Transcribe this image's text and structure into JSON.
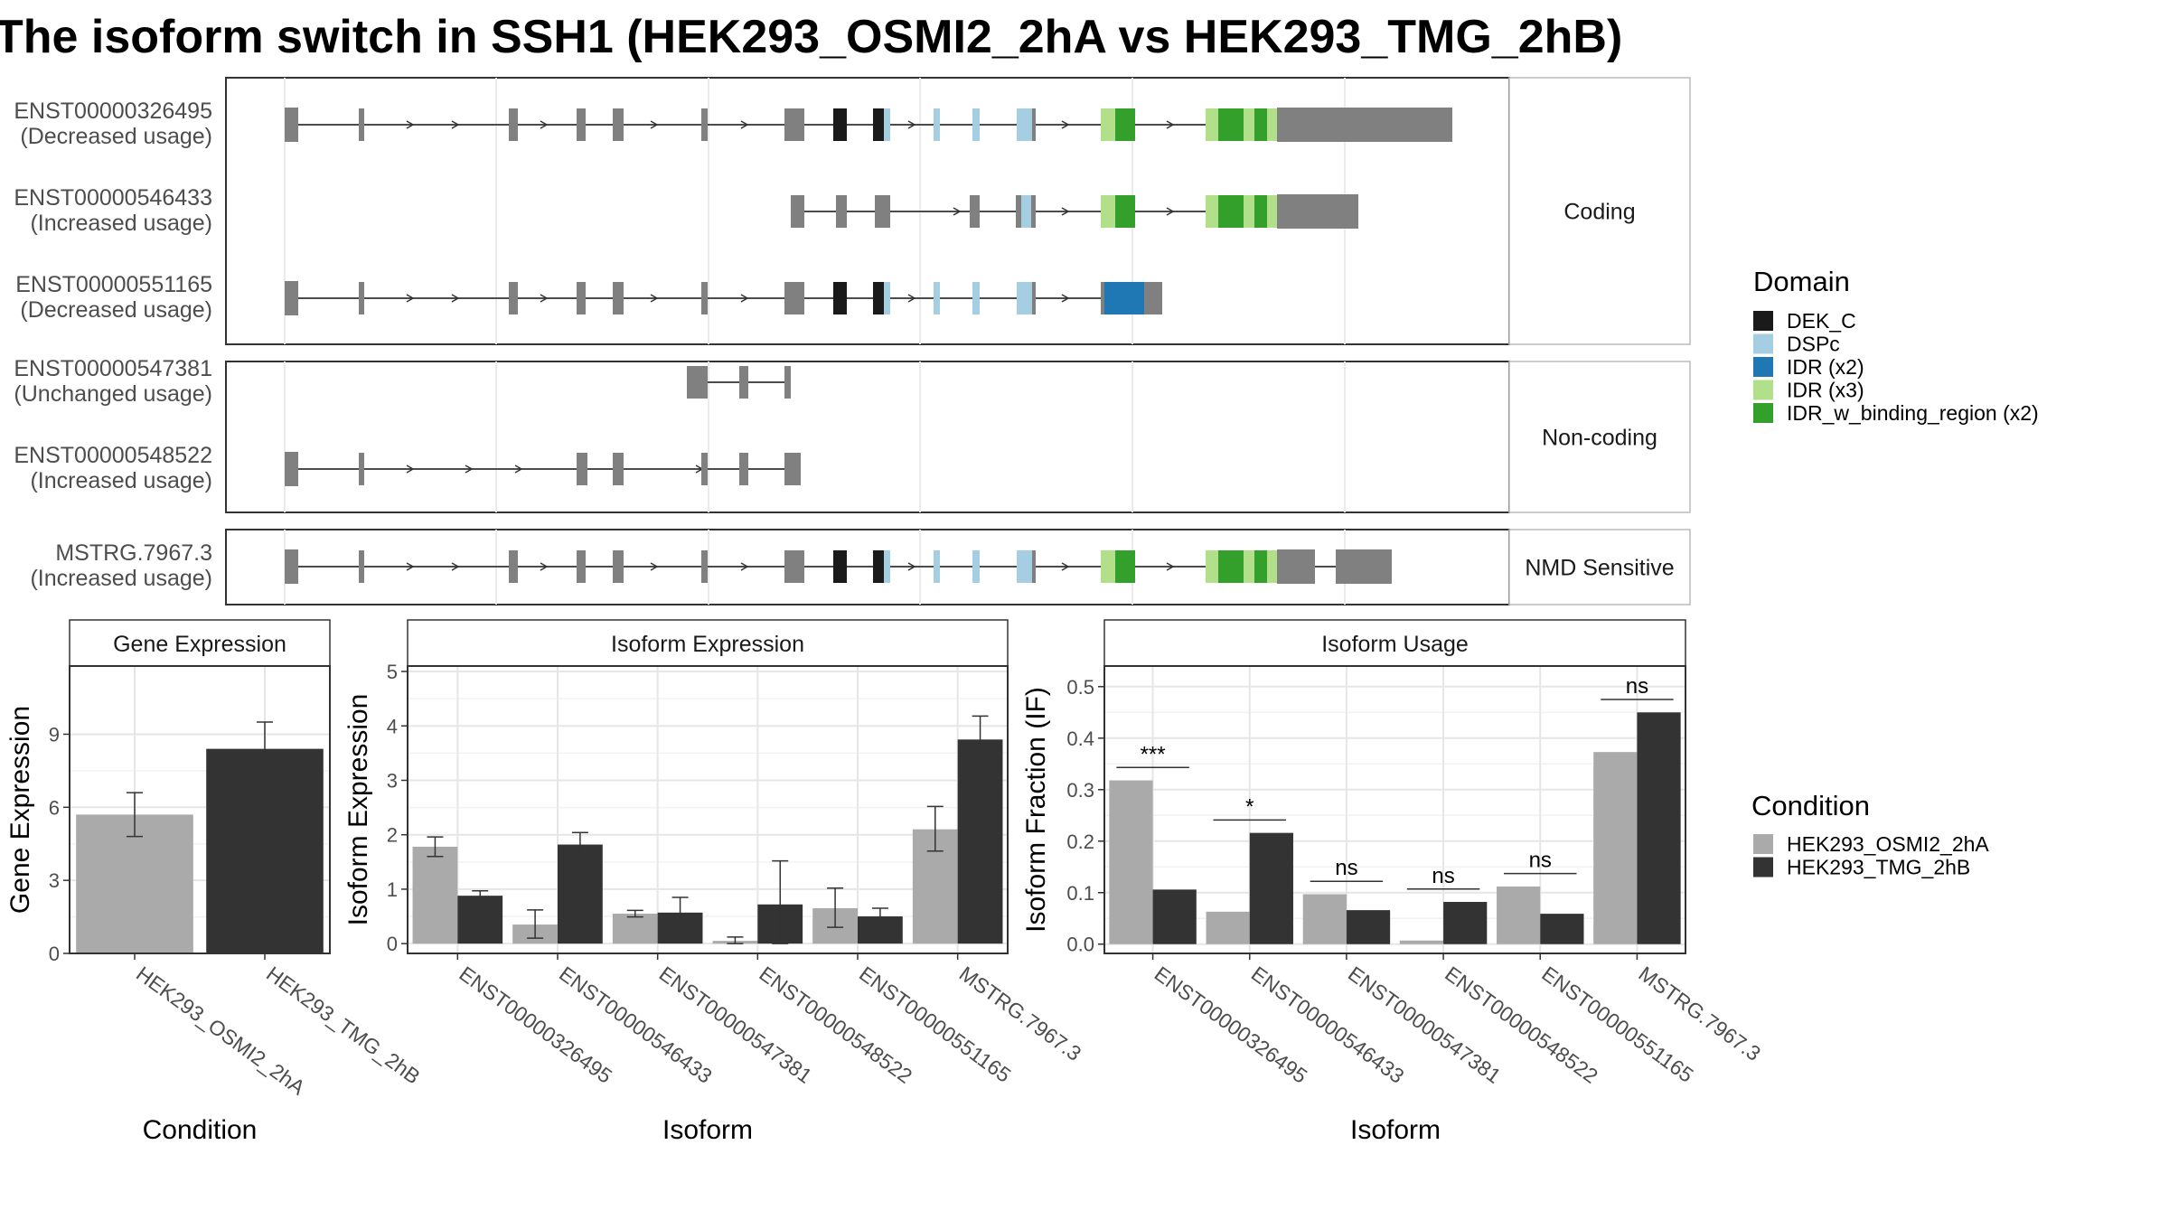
{
  "title": "The isoform switch in SSH1 (HEK293_OSMI2_2hA vs HEK293_TMG_2hB)",
  "colors": {
    "exon": "#808080",
    "DEK_C": "#1a1a1a",
    "DSPc": "#a6cee3",
    "IDR (x2)": "#1f78b4",
    "IDR (x3)": "#b2df8a",
    "IDR_w_binding_region (x2)": "#33a02c",
    "cond1": "#aaaaaa",
    "cond2": "#333333"
  },
  "structure": {
    "sections": [
      {
        "label": "Coding",
        "transcripts": [
          {
            "id": "ENST00000326495",
            "usage": "(Decreased usage)"
          },
          {
            "id": "ENST00000546433",
            "usage": "(Increased usage)"
          },
          {
            "id": "ENST00000551165",
            "usage": "(Decreased usage)"
          }
        ]
      },
      {
        "label": "Non-coding",
        "transcripts": [
          {
            "id": "ENST00000547381",
            "usage": "(Unchanged usage)"
          },
          {
            "id": "ENST00000548522",
            "usage": "(Increased usage)"
          }
        ]
      },
      {
        "label": "NMD Sensitive",
        "transcripts": [
          {
            "id": "MSTRG.7967.3",
            "usage": "(Increased usage)"
          }
        ]
      }
    ]
  },
  "legend_domain": {
    "title": "Domain",
    "items": [
      "DEK_C",
      "DSPc",
      "IDR (x2)",
      "IDR (x3)",
      "IDR_w_binding_region (x2)"
    ]
  },
  "legend_condition": {
    "title": "Condition",
    "items": [
      "HEK293_OSMI2_2hA",
      "HEK293_TMG_2hB"
    ]
  },
  "chart_data": [
    {
      "type": "bar",
      "title": "Gene Expression",
      "xlabel": "Condition",
      "ylabel": "Gene Expression",
      "categories": [
        "HEK293_OSMI2_2hA",
        "HEK293_TMG_2hB"
      ],
      "values": [
        5.7,
        8.4
      ],
      "errors": [
        [
          4.8,
          6.6
        ],
        [
          7.3,
          9.5
        ]
      ],
      "yticks": [
        0,
        3,
        6,
        9
      ],
      "ylim": [
        0,
        11.8
      ],
      "grid": true
    },
    {
      "type": "bar",
      "title": "Isoform Expression",
      "xlabel": "Isoform",
      "ylabel": "Isoform Expression",
      "categories": [
        "ENST00000326495",
        "ENST00000546433",
        "ENST00000547381",
        "ENST00000548522",
        "ENST00000551165",
        "MSTRG.7967.3"
      ],
      "series": [
        {
          "name": "HEK293_OSMI2_2hA",
          "values": [
            1.78,
            0.35,
            0.55,
            0.05,
            0.65,
            2.1
          ],
          "errors": [
            [
              1.6,
              1.96
            ],
            [
              0.1,
              0.62
            ],
            [
              0.49,
              0.61
            ],
            [
              0.0,
              0.12
            ],
            [
              0.3,
              1.02
            ],
            [
              1.7,
              2.52
            ]
          ]
        },
        {
          "name": "HEK293_TMG_2hB",
          "values": [
            0.88,
            1.82,
            0.57,
            0.72,
            0.5,
            3.75
          ],
          "errors": [
            [
              0.8,
              0.97
            ],
            [
              1.6,
              2.04
            ],
            [
              0.3,
              0.85
            ],
            [
              0.0,
              1.52
            ],
            [
              0.37,
              0.65
            ],
            [
              3.32,
              4.18
            ]
          ]
        }
      ],
      "yticks": [
        0,
        1,
        2,
        3,
        4,
        5
      ],
      "ylim": [
        -0.18,
        5.1
      ],
      "grid": true
    },
    {
      "type": "bar",
      "title": "Isoform Usage",
      "xlabel": "Isoform",
      "ylabel": "Isoform Fraction (IF)",
      "categories": [
        "ENST00000326495",
        "ENST00000546433",
        "ENST00000547381",
        "ENST00000548522",
        "ENST00000551165",
        "MSTRG.7967.3"
      ],
      "series": [
        {
          "name": "HEK293_OSMI2_2hA",
          "values": [
            0.318,
            0.063,
            0.097,
            0.007,
            0.112,
            0.373
          ]
        },
        {
          "name": "HEK293_TMG_2hB",
          "values": [
            0.106,
            0.216,
            0.066,
            0.082,
            0.059,
            0.45
          ]
        }
      ],
      "significance": [
        "***",
        "*",
        "ns",
        "ns",
        "ns",
        "ns"
      ],
      "yticks": [
        0.0,
        0.1,
        0.2,
        0.3,
        0.4,
        0.5
      ],
      "ylim": [
        -0.018,
        0.54
      ],
      "grid": true
    }
  ]
}
